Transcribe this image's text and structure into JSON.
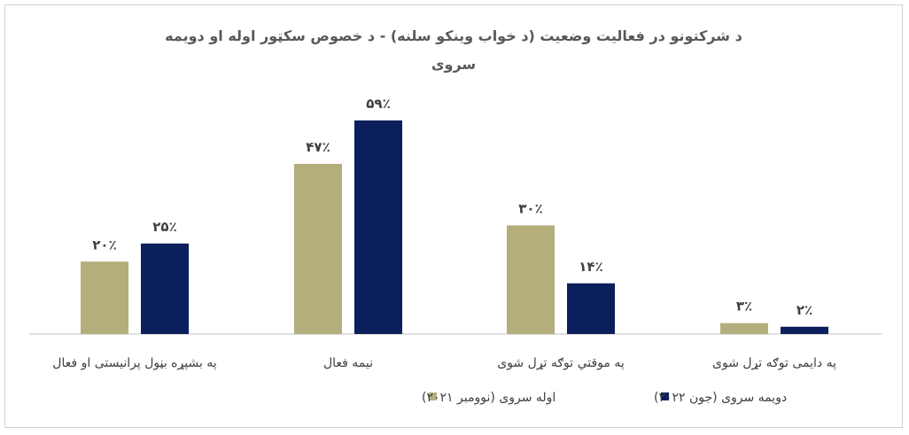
{
  "chart_data": {
    "type": "bar",
    "title_line1": "د شرکتونو در فعالیت وضعیت (د خواب وینکو سلنه) - د خصوص سکټور اوله او دویمه",
    "title_line2": "سروی",
    "categories": [
      "په بشپړه بڼول پرانیستی او فعال",
      "نیمه فعال",
      "په موقتي توګه تړل شوی",
      "په دایمی توګه تړل شوی"
    ],
    "series": [
      {
        "name": "اوله سروی (نوومبر ۲۰۲۱)",
        "color": "#b3ae7c",
        "values": [
          20,
          47,
          30,
          3
        ],
        "labels": [
          "۲۰٪",
          "۴۷٪",
          "۳۰٪",
          "۳٪"
        ]
      },
      {
        "name": "دویمه سروی (جون ۲۰۲۲)",
        "color": "#0b1f5c",
        "values": [
          25,
          59,
          14,
          2
        ],
        "labels": [
          "۲۵٪",
          "۵۹٪",
          "۱۴٪",
          "۲٪"
        ]
      }
    ],
    "ylim": [
      0,
      70
    ],
    "grid": false,
    "legend_position": "bottom"
  }
}
